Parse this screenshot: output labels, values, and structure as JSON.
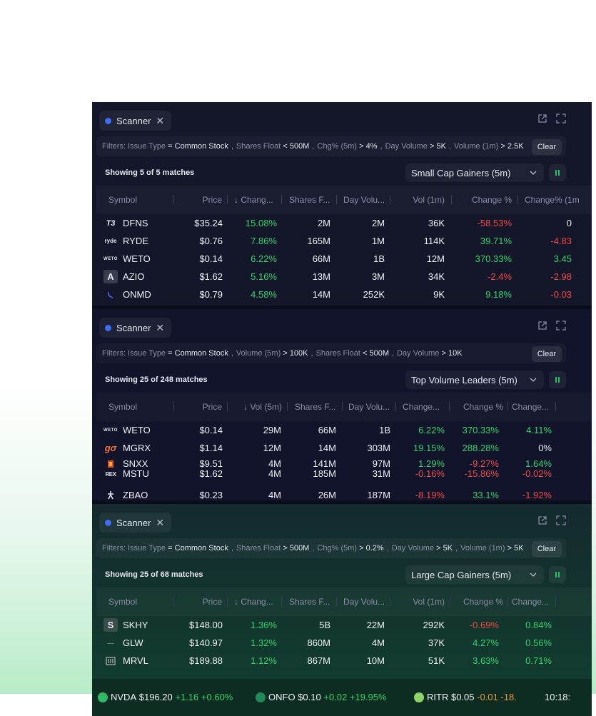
{
  "panels": [
    {
      "tab_label": "Scanner",
      "filters": [
        {
          "k": "Filters: Issue Type",
          "op": "=",
          "v": "Common Stock"
        },
        {
          "k": "Shares Float",
          "op": "<",
          "v": "500M"
        },
        {
          "k": "Chg% (5m)",
          "op": ">",
          "v": "4%"
        },
        {
          "k": "Day Volume",
          "op": ">",
          "v": "5K"
        },
        {
          "k": "Volume (1m)",
          "op": ">",
          "v": "2.5K"
        }
      ],
      "clear_label": "Clear",
      "showing": "Showing 5 of 5 matches",
      "preset": "Small Cap Gainers (5m)",
      "headers": [
        "Symbol",
        "Price",
        "↓ Chang...",
        "Shares F...",
        "Day Volu...",
        "Vol (1m)",
        "Change %",
        "Change% (1m"
      ],
      "rows": [
        {
          "logo": "T3",
          "symbol": "DFNS",
          "c": [
            "$35.24",
            "15.08%",
            "2M",
            "2M",
            "36K",
            "-58.53%",
            "0"
          ]
        },
        {
          "logo": "ryde",
          "symbol": "RYDE",
          "c": [
            "$0.76",
            "7.86%",
            "165M",
            "1M",
            "114K",
            "39.71%",
            "-4.83"
          ]
        },
        {
          "logo": "WETO",
          "symbol": "WETO",
          "c": [
            "$0.14",
            "6.22%",
            "66M",
            "1B",
            "12M",
            "370.33%",
            "3.45"
          ]
        },
        {
          "logo": "A",
          "symbol": "AZIO",
          "c": [
            "$1.62",
            "5.16%",
            "13M",
            "3M",
            "34K",
            "-2.4%",
            "-2.98"
          ]
        },
        {
          "logo": "",
          "symbol": "ONMD",
          "c": [
            "$0.79",
            "4.58%",
            "14M",
            "252K",
            "9K",
            "9.18%",
            "-0.03"
          ]
        }
      ]
    },
    {
      "tab_label": "Scanner",
      "filters": [
        {
          "k": "Filters: Issue Type",
          "op": "=",
          "v": "Common Stock"
        },
        {
          "k": "Volume (5m)",
          "op": ">",
          "v": "100K"
        },
        {
          "k": "Shares Float",
          "op": "<",
          "v": "500M"
        },
        {
          "k": "Day Volume",
          "op": ">",
          "v": "10K"
        }
      ],
      "clear_label": "Clear",
      "showing": "Showing 25 of 248 matches",
      "preset": "Top Volume Leaders (5m)",
      "headers": [
        "Symbol",
        "Price",
        "↓ Vol (5m)",
        "Shares F...",
        "Day Volu...",
        "Change...",
        "Change %",
        "Change..."
      ],
      "rows": [
        {
          "logo": "WETO",
          "symbol": "WETO",
          "c": [
            "$0.14",
            "29M",
            "66M",
            "1B",
            "6.22%",
            "370.33%",
            "4.11%"
          ]
        },
        {
          "logo": "gσ",
          "symbol": "MGRX",
          "c": [
            "$1.14",
            "12M",
            "14M",
            "303M",
            "19.15%",
            "288.28%",
            "0%"
          ]
        },
        {
          "logo": "",
          "symbol": "SNXX",
          "c": [
            "$9.51",
            "4M",
            "141M",
            "97M",
            "1.29%",
            "-9.27%",
            "1.64%"
          ]
        },
        {
          "logo": "REX",
          "symbol": "MSTU",
          "c": [
            "$1.62",
            "4M",
            "185M",
            "31M",
            "-0.16%",
            "-15.86%",
            "-0.02%"
          ]
        },
        {
          "logo": "",
          "symbol": "ZBAO",
          "c": [
            "$0.23",
            "4M",
            "26M",
            "187M",
            "-8.19%",
            "33.1%",
            "-1.92%"
          ]
        }
      ]
    },
    {
      "tab_label": "Scanner",
      "filters": [
        {
          "k": "Filters: Issue Type",
          "op": "=",
          "v": "Common Stock"
        },
        {
          "k": "Shares Float",
          "op": ">",
          "v": "500M"
        },
        {
          "k": "Chg% (5m)",
          "op": ">",
          "v": "0.2%"
        },
        {
          "k": "Day Volume",
          "op": ">",
          "v": "5K"
        },
        {
          "k": "Volume (1m)",
          "op": ">",
          "v": "5K"
        }
      ],
      "clear_label": "Clear",
      "showing": "Showing 25 of 68 matches",
      "preset": "Large Cap Gainers (5m)",
      "headers": [
        "Symbol",
        "Price",
        "↓ Chang...",
        "Shares F...",
        "Day Volu...",
        "Vol (1m)",
        "Change %",
        "Change..."
      ],
      "rows": [
        {
          "logo": "S",
          "symbol": "SKHY",
          "c": [
            "$148.00",
            "1.36%",
            "5B",
            "22M",
            "292K",
            "-0.69%",
            "0.84%"
          ]
        },
        {
          "logo": "—",
          "symbol": "GLW",
          "c": [
            "$140.97",
            "1.32%",
            "860M",
            "4M",
            "37K",
            "4.27%",
            "0.56%"
          ]
        },
        {
          "logo": "",
          "symbol": "MRVL",
          "c": [
            "$189.88",
            "1.12%",
            "867M",
            "10M",
            "51K",
            "3.63%",
            "0.71%"
          ]
        }
      ]
    }
  ],
  "ticker": [
    {
      "sym": "NVDA",
      "price": "$196.20",
      "chg": "+1.16",
      "pct": "+0.60%"
    },
    {
      "sym": "ONFO",
      "price": "$0.10",
      "chg": "+0.02",
      "pct": "+19.95%"
    },
    {
      "sym": "RITR",
      "price": "$0.05",
      "chg": "-0.01",
      "pct": "-18."
    }
  ],
  "clock": "10:18:",
  "colors": {
    "up": "#2fd46a",
    "down": "#f04848",
    "accent": "#3f6df5"
  }
}
